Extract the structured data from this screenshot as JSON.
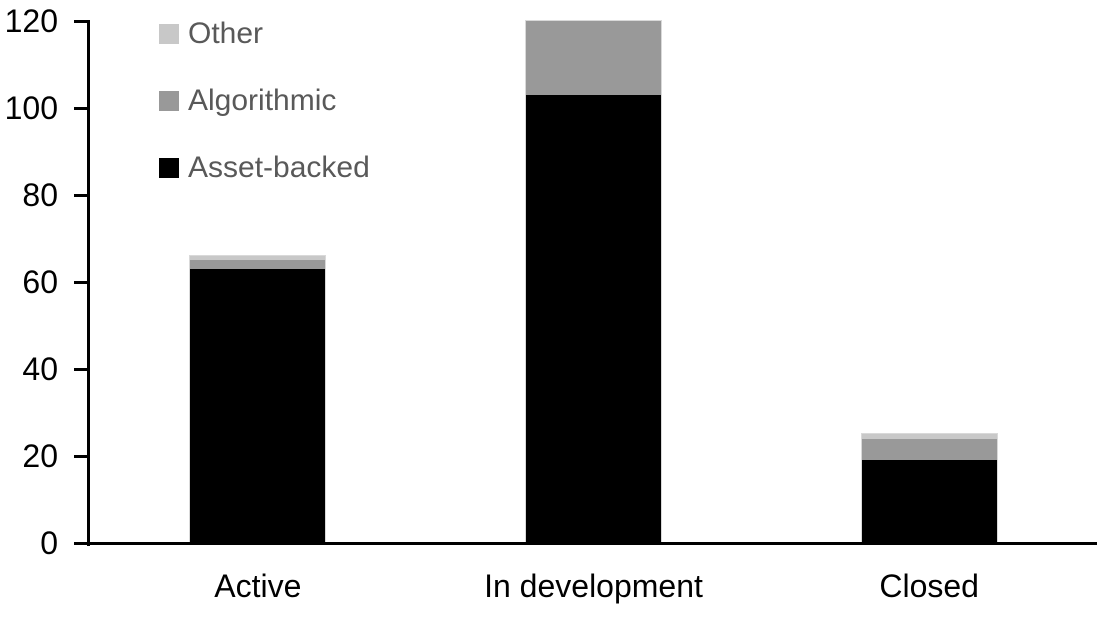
{
  "chart_data": {
    "type": "bar",
    "stacked": true,
    "title": "",
    "xlabel": "",
    "ylabel": "",
    "categories": [
      "Active",
      "In development",
      "Closed"
    ],
    "series": [
      {
        "name": "Asset-backed",
        "color": "#000000",
        "values": [
          63,
          103,
          19
        ]
      },
      {
        "name": "Algorithmic",
        "color": "#999999",
        "values": [
          2,
          17,
          5
        ]
      },
      {
        "name": "Other",
        "color": "#c8c8c8",
        "values": [
          1,
          0,
          1
        ]
      }
    ],
    "totals": [
      66,
      120,
      25
    ],
    "y_ticks": [
      0,
      20,
      40,
      60,
      80,
      100,
      120
    ],
    "ylim": [
      0,
      120
    ],
    "grid": false,
    "legend": {
      "position": "top-left",
      "order": [
        "Other",
        "Algorithmic",
        "Asset-backed"
      ]
    },
    "colors": {
      "axis": "#000000",
      "legend_text": "#595959",
      "bar_outline": "#d9d9d9",
      "background": "#ffffff"
    }
  }
}
